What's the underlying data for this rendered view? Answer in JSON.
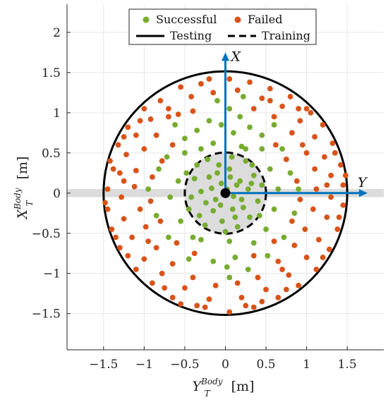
{
  "chart_data": {
    "type": "scatter",
    "xlabel": {
      "main": "Y",
      "sub": "T",
      "sup": "Body",
      "unit": "[m]"
    },
    "ylabel": {
      "main": "X",
      "sub": "T",
      "sup": "Body",
      "unit": "[m]"
    },
    "xlim": [
      -1.95,
      1.95
    ],
    "ylim": [
      -1.95,
      2.35
    ],
    "xticks": [
      -1.5,
      -1,
      -0.5,
      0,
      0.5,
      1,
      1.5
    ],
    "yticks": [
      -1.5,
      -1,
      -0.5,
      0,
      0.5,
      1,
      1.5,
      2
    ],
    "xtick_labels": [
      "−1.5",
      "−1",
      "−0.5",
      "0",
      "0.5",
      "1",
      "1.5"
    ],
    "ytick_labels": [
      "−1.5",
      "−1",
      "−0.5",
      "0",
      "0.5",
      "1",
      "1.5",
      "2"
    ],
    "grid": true,
    "legend": {
      "placement": "top-center",
      "entries": [
        {
          "label": "Successful",
          "kind": "dot",
          "color": "#77ac30"
        },
        {
          "label": "Failed",
          "kind": "dot",
          "color": "#d95319"
        },
        {
          "label": "Testing",
          "kind": "solid-line",
          "color": "#000000"
        },
        {
          "label": "Training",
          "kind": "dashed-line",
          "color": "#000000"
        }
      ]
    },
    "circles": [
      {
        "name": "Testing",
        "radius": 1.5,
        "style": "solid",
        "color": "#000000"
      },
      {
        "name": "Training",
        "radius": 0.5,
        "style": "dashed",
        "color": "#000000",
        "fill": "#dcdcdc"
      }
    ],
    "band": {
      "axis": "horizontal",
      "center": 0,
      "half_width": 0.05,
      "color": "#dcdcdc"
    },
    "vectors": [
      {
        "label": "X",
        "from": [
          0,
          0
        ],
        "to": [
          0,
          1.75
        ],
        "color": "#0072bd"
      },
      {
        "label": "Y",
        "from": [
          0,
          0
        ],
        "to": [
          1.75,
          0
        ],
        "color": "#0072bd"
      }
    ],
    "origin": [
      0,
      0
    ],
    "series": [
      {
        "name": "Successful",
        "color": "#77ac30",
        "points": [
          [
            0.02,
            0.05
          ],
          [
            -0.05,
            0.12
          ],
          [
            0.1,
            -0.04
          ],
          [
            -0.12,
            -0.08
          ],
          [
            0.18,
            0.15
          ],
          [
            -0.2,
            0.2
          ],
          [
            0.22,
            -0.18
          ],
          [
            -0.15,
            -0.22
          ],
          [
            0.05,
            0.3
          ],
          [
            -0.08,
            0.35
          ],
          [
            0.28,
            0.05
          ],
          [
            -0.3,
            0.02
          ],
          [
            0.12,
            -0.3
          ],
          [
            -0.04,
            -0.35
          ],
          [
            0.35,
            0.22
          ],
          [
            -0.38,
            0.18
          ],
          [
            0.3,
            -0.3
          ],
          [
            -0.32,
            -0.28
          ],
          [
            0.08,
            0.45
          ],
          [
            0.4,
            -0.1
          ],
          [
            -0.42,
            -0.05
          ],
          [
            0.15,
            -0.42
          ],
          [
            -0.25,
            -0.4
          ],
          [
            0.25,
            0.4
          ],
          [
            -0.22,
            0.42
          ],
          [
            0.45,
            0.1
          ],
          [
            -0.48,
            0.25
          ],
          [
            0.42,
            -0.28
          ],
          [
            -0.45,
            -0.2
          ],
          [
            0.0,
            -0.48
          ],
          [
            0.06,
            0.2
          ],
          [
            -0.1,
            0.25
          ],
          [
            0.14,
            0.1
          ],
          [
            -0.17,
            0.06
          ],
          [
            0.2,
            -0.08
          ],
          [
            -0.06,
            -0.15
          ],
          [
            0.09,
            -0.2
          ],
          [
            -0.24,
            -0.12
          ],
          [
            0.32,
            0.12
          ],
          [
            -0.35,
            0.35
          ],
          [
            0.33,
            0.35
          ],
          [
            0.55,
            0.3
          ],
          [
            -0.58,
            0.15
          ],
          [
            0.6,
            -0.2
          ],
          [
            -0.55,
            -0.35
          ],
          [
            0.2,
            0.58
          ],
          [
            -0.15,
            0.62
          ],
          [
            0.05,
            -0.6
          ],
          [
            -0.3,
            -0.58
          ],
          [
            0.5,
            -0.45
          ],
          [
            -0.5,
            0.5
          ],
          [
            0.65,
            0.05
          ],
          [
            -0.68,
            -0.05
          ],
          [
            0.35,
            -0.62
          ],
          [
            0.1,
            0.75
          ],
          [
            -0.05,
            0.85
          ],
          [
            0.18,
            0.95
          ],
          [
            -0.2,
            0.9
          ],
          [
            0.3,
            0.82
          ],
          [
            -0.35,
            0.78
          ],
          [
            0.45,
            0.72
          ],
          [
            -0.5,
            0.68
          ],
          [
            0.7,
            0.55
          ],
          [
            -0.72,
            0.45
          ],
          [
            0.8,
            0.25
          ],
          [
            -0.82,
            0.3
          ],
          [
            0.85,
            -0.25
          ],
          [
            -0.85,
            -0.28
          ],
          [
            0.72,
            -0.55
          ],
          [
            -0.7,
            -0.55
          ],
          [
            0.12,
            -0.8
          ],
          [
            -0.15,
            -0.85
          ],
          [
            0.28,
            -0.95
          ],
          [
            0.02,
            -0.92
          ],
          [
            0.52,
            -0.78
          ],
          [
            -0.45,
            -0.82
          ],
          [
            0.05,
            1.05
          ],
          [
            -0.1,
            1.15
          ],
          [
            0.22,
            1.2
          ],
          [
            0.05,
            -1.05
          ],
          [
            0.9,
            0.05
          ],
          [
            -0.95,
            0.05
          ],
          [
            0.6,
            0.85
          ],
          [
            -0.62,
            0.85
          ],
          [
            0.25,
            0.55
          ],
          [
            -0.3,
            0.55
          ],
          [
            -0.4,
            -0.55
          ],
          [
            0.45,
            0.55
          ]
        ]
      },
      {
        "name": "Failed",
        "color": "#d95319",
        "points": [
          [
            0.05,
            1.42
          ],
          [
            0.3,
            1.38
          ],
          [
            -0.3,
            1.36
          ],
          [
            0.55,
            1.3
          ],
          [
            -0.55,
            1.32
          ],
          [
            0.8,
            1.2
          ],
          [
            -0.8,
            1.15
          ],
          [
            1.0,
            1.05
          ],
          [
            -1.0,
            1.05
          ],
          [
            1.2,
            0.85
          ],
          [
            -1.2,
            0.82
          ],
          [
            1.32,
            0.62
          ],
          [
            -1.32,
            0.6
          ],
          [
            1.42,
            0.35
          ],
          [
            -1.42,
            0.4
          ],
          [
            1.45,
            0.1
          ],
          [
            -1.45,
            0.05
          ],
          [
            1.45,
            -0.15
          ],
          [
            -1.45,
            -0.2
          ],
          [
            1.38,
            -0.45
          ],
          [
            -1.4,
            -0.45
          ],
          [
            1.28,
            -0.7
          ],
          [
            -1.3,
            -0.68
          ],
          [
            1.12,
            -0.95
          ],
          [
            -1.1,
            -0.95
          ],
          [
            0.9,
            -1.15
          ],
          [
            -0.9,
            -1.12
          ],
          [
            0.65,
            -1.3
          ],
          [
            -0.65,
            -1.3
          ],
          [
            0.35,
            -1.42
          ],
          [
            -0.35,
            -1.4
          ],
          [
            0.05,
            -1.48
          ],
          [
            0.15,
            1.28
          ],
          [
            -0.15,
            1.25
          ],
          [
            0.45,
            1.18
          ],
          [
            -0.42,
            1.2
          ],
          [
            0.7,
            1.08
          ],
          [
            -0.7,
            1.05
          ],
          [
            0.92,
            0.9
          ],
          [
            -0.92,
            0.92
          ],
          [
            1.1,
            0.7
          ],
          [
            -1.1,
            0.72
          ],
          [
            1.22,
            0.45
          ],
          [
            -1.22,
            0.48
          ],
          [
            1.3,
            0.22
          ],
          [
            -1.3,
            0.25
          ],
          [
            1.3,
            -0.05
          ],
          [
            -1.28,
            -0.05
          ],
          [
            1.25,
            -0.3
          ],
          [
            -1.25,
            -0.32
          ],
          [
            1.15,
            -0.58
          ],
          [
            -1.15,
            -0.55
          ],
          [
            1.0,
            -0.8
          ],
          [
            -1.0,
            -0.82
          ],
          [
            0.78,
            -1.02
          ],
          [
            -0.78,
            -1.0
          ],
          [
            0.5,
            -1.2
          ],
          [
            -0.5,
            -1.18
          ],
          [
            0.2,
            -1.3
          ],
          [
            -0.2,
            -1.32
          ],
          [
            0.35,
            1.05
          ],
          [
            -0.4,
            1.02
          ],
          [
            0.6,
            0.95
          ],
          [
            -0.58,
            0.98
          ],
          [
            0.82,
            0.75
          ],
          [
            -0.85,
            0.72
          ],
          [
            1.0,
            0.5
          ],
          [
            -1.0,
            0.55
          ],
          [
            1.1,
            0.3
          ],
          [
            -1.1,
            0.28
          ],
          [
            1.12,
            0.05
          ],
          [
            -1.12,
            0.08
          ],
          [
            1.08,
            -0.2
          ],
          [
            -1.05,
            -0.2
          ],
          [
            0.98,
            -0.45
          ],
          [
            -0.98,
            -0.42
          ],
          [
            0.85,
            -0.65
          ],
          [
            -0.85,
            -0.68
          ],
          [
            0.65,
            -0.85
          ],
          [
            -0.65,
            -0.88
          ],
          [
            0.4,
            -1.05
          ],
          [
            -0.4,
            -1.05
          ],
          [
            0.15,
            -1.12
          ],
          [
            -0.12,
            -1.15
          ],
          [
            0.62,
            0.6
          ],
          [
            -0.65,
            0.6
          ],
          [
            0.75,
            0.42
          ],
          [
            -0.78,
            0.4
          ],
          [
            0.88,
            0.15
          ],
          [
            -0.9,
            0.2
          ],
          [
            0.92,
            -0.08
          ],
          [
            -0.92,
            -0.1
          ],
          [
            0.82,
            -0.35
          ],
          [
            -0.8,
            -0.35
          ],
          [
            0.6,
            -0.6
          ],
          [
            -0.6,
            -0.62
          ],
          [
            0.35,
            -0.78
          ],
          [
            -0.38,
            -0.75
          ],
          [
            0.55,
            1.15
          ],
          [
            -0.2,
            1.42
          ],
          [
            0.9,
            1.05
          ],
          [
            -1.05,
            0.9
          ],
          [
            1.35,
            0.5
          ],
          [
            -1.38,
            0.3
          ],
          [
            1.4,
            -0.3
          ],
          [
            -1.35,
            -0.55
          ],
          [
            1.2,
            -0.8
          ],
          [
            -1.2,
            -0.78
          ],
          [
            0.75,
            -1.2
          ],
          [
            -0.75,
            -1.18
          ],
          [
            0.25,
            -1.4
          ],
          [
            -0.25,
            -1.42
          ],
          [
            1.05,
            1.0
          ],
          [
            -1.25,
            0.7
          ],
          [
            1.48,
            0.22
          ],
          [
            -1.48,
            -0.12
          ],
          [
            0.45,
            -1.35
          ],
          [
            -0.55,
            -1.38
          ],
          [
            1.25,
            0.1
          ],
          [
            -1.25,
            0.15
          ],
          [
            0.95,
            0.6
          ],
          [
            -0.95,
            -0.6
          ],
          [
            0.7,
            -0.95
          ],
          [
            -0.7,
            0.95
          ]
        ]
      }
    ]
  }
}
